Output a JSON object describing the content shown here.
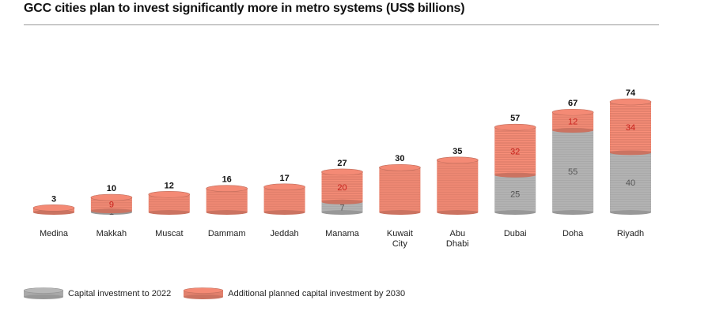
{
  "chart_data": {
    "type": "bar",
    "stacked": true,
    "title": "GCC cities plan to invest significantly more in metro systems (US$ billions)",
    "categories": [
      "Medina",
      "Makkah",
      "Muscat",
      "Dammam",
      "Jeddah",
      "Manama",
      "Kuwait City",
      "Abu Dhabi",
      "Dubai",
      "Doha",
      "Riyadh"
    ],
    "totals": [
      3,
      10,
      12,
      16,
      17,
      27,
      30,
      35,
      57,
      67,
      74
    ],
    "series": [
      {
        "name": "Capital investment to 2022",
        "color": "#a9a9a9",
        "values": [
          0,
          1,
          0,
          0,
          0,
          7,
          0,
          0,
          25,
          55,
          40
        ],
        "labels": [
          "",
          "1",
          "",
          "",
          "",
          "7",
          "",
          "",
          "25",
          "55",
          "40"
        ]
      },
      {
        "name": "Additional planned capital investment by 2030",
        "color": "#e2806c",
        "values": [
          3,
          9,
          12,
          16,
          17,
          20,
          30,
          35,
          32,
          12,
          34
        ],
        "labels": [
          "",
          "9",
          "",
          "",
          "",
          "20",
          "",
          "",
          "32",
          "12",
          "34"
        ]
      }
    ],
    "ylim": [
      0,
      74
    ],
    "grid": false,
    "legend_position": "bottom-left",
    "icon": "coin-stack-icon"
  }
}
